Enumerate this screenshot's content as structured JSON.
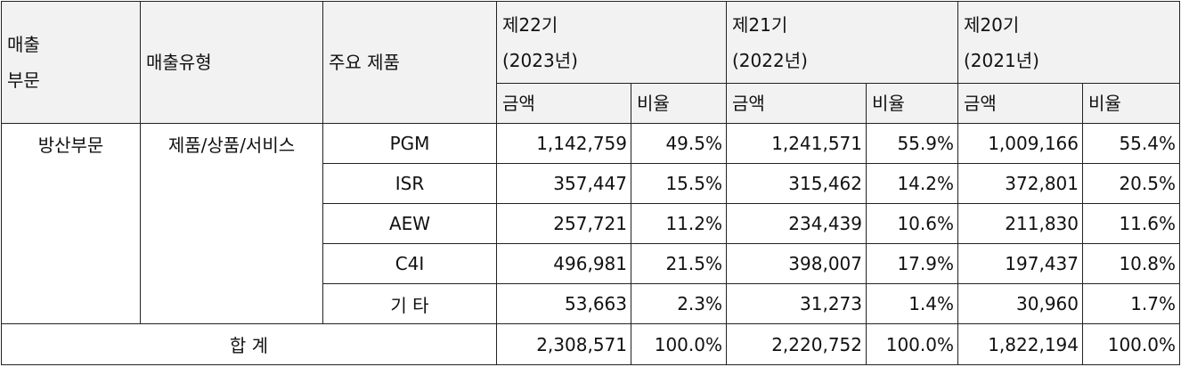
{
  "header": {
    "segment": "매출\n부문",
    "sales_type": "매출유형",
    "products": "주요 제품",
    "periods": [
      {
        "label": "제22기\n(2023년)",
        "amount": "금액",
        "ratio": "비율"
      },
      {
        "label": "제21기\n(2022년)",
        "amount": "금액",
        "ratio": "비율"
      },
      {
        "label": "제20기\n(2021년)",
        "amount": "금액",
        "ratio": "비율"
      }
    ]
  },
  "table": {
    "segment": "방산부문",
    "sales_type": "제품/상품/서비스",
    "rows": [
      [
        "PGM",
        "1,142,759",
        "49.5%",
        "1,241,571",
        "55.9%",
        "1,009,166",
        "55.4%"
      ],
      [
        "ISR",
        "357,447",
        "15.5%",
        "315,462",
        "14.2%",
        "372,801",
        "20.5%"
      ],
      [
        "AEW",
        "257,721",
        "11.2%",
        "234,439",
        "10.6%",
        "211,830",
        "11.6%"
      ],
      [
        "C4I",
        "496,981",
        "21.5%",
        "398,007",
        "17.9%",
        "197,437",
        "10.8%"
      ],
      [
        "기 타",
        "53,663",
        "2.3%",
        "31,273",
        "1.4%",
        "30,960",
        "1.7%"
      ]
    ],
    "total": [
      "합 계",
      "2,308,571",
      "100.0%",
      "2,220,752",
      "100.0%",
      "1,822,194",
      "100.0%"
    ]
  }
}
